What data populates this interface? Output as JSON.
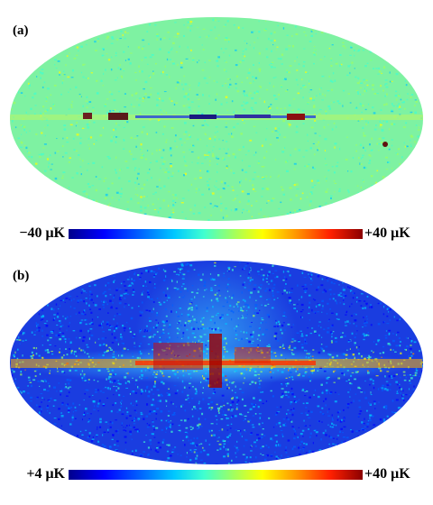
{
  "panels": [
    {
      "label": "(a)",
      "colorbar": {
        "min_label": "−40 μK",
        "max_label": "+40 μK"
      },
      "background_color": "#7ef2a2"
    },
    {
      "label": "(b)",
      "colorbar": {
        "min_label": "+4 μK",
        "max_label": "+40 μK"
      },
      "background_color": "#1a3de0"
    }
  ],
  "colormap": [
    "#00008b",
    "#0000ff",
    "#0060ff",
    "#00c8ff",
    "#40ffd0",
    "#a0ff60",
    "#ffff00",
    "#ff9000",
    "#ff2000",
    "#8b0000"
  ]
}
